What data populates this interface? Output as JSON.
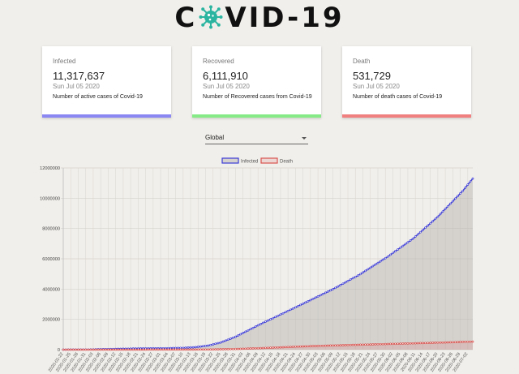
{
  "header": {
    "logo_left": "C",
    "logo_right": "VID-19"
  },
  "cards": [
    {
      "label": "Infected",
      "count": "11,317,637",
      "date": "Sun Jul 05 2020",
      "desc": "Number of active cases of Covid-19",
      "color": "#8a86f2"
    },
    {
      "label": "Recovered",
      "count": "6,111,910",
      "date": "Sun Jul 05 2020",
      "desc": "Number of Recovered cases from Covid-19",
      "color": "#86ea86"
    },
    {
      "label": "Death",
      "count": "531,729",
      "date": "Sun Jul 05 2020",
      "desc": "Number of death cases of Covid-19",
      "color": "#f08080"
    }
  ],
  "country_select": {
    "value": "Global"
  },
  "chart_data": {
    "type": "line",
    "legend": [
      "Infected",
      "Death"
    ],
    "legend_position": "top",
    "ylim": [
      0,
      12000000
    ],
    "y_ticks": [
      0,
      2000000,
      4000000,
      6000000,
      8000000,
      10000000,
      12000000
    ],
    "x_tick_labels": [
      "2020-01-22",
      "2020-01-25",
      "2020-01-28",
      "2020-01-31",
      "2020-02-03",
      "2020-02-06",
      "2020-02-09",
      "2020-02-12",
      "2020-02-15",
      "2020-02-18",
      "2020-02-21",
      "2020-02-24",
      "2020-02-27",
      "2020-03-01",
      "2020-03-04",
      "2020-03-07",
      "2020-03-10",
      "2020-03-13",
      "2020-03-16",
      "2020-03-19",
      "2020-03-22",
      "2020-03-25",
      "2020-03-28",
      "2020-03-31",
      "2020-04-03",
      "2020-04-06",
      "2020-04-09",
      "2020-04-12",
      "2020-04-15",
      "2020-04-18",
      "2020-04-21",
      "2020-04-24",
      "2020-04-27",
      "2020-04-30",
      "2020-05-03",
      "2020-05-06",
      "2020-05-09",
      "2020-05-12",
      "2020-05-15",
      "2020-05-18",
      "2020-05-21",
      "2020-05-24",
      "2020-05-27",
      "2020-05-30",
      "2020-06-02",
      "2020-06-05",
      "2020-06-08",
      "2020-06-11",
      "2020-06-14",
      "2020-06-17",
      "2020-06-20",
      "2020-06-23",
      "2020-06-26",
      "2020-06-29",
      "2020-07-02"
    ],
    "grid": true,
    "series": [
      {
        "name": "Infected",
        "color": "#3b3bd6",
        "fill": "rgba(180,176,170,0.45)",
        "x": [
          "2020-01-22",
          "2020-02-01",
          "2020-02-10",
          "2020-02-20",
          "2020-03-01",
          "2020-03-10",
          "2020-03-15",
          "2020-03-20",
          "2020-03-25",
          "2020-03-31",
          "2020-04-05",
          "2020-04-10",
          "2020-04-15",
          "2020-04-20",
          "2020-04-30",
          "2020-05-10",
          "2020-05-20",
          "2020-05-31",
          "2020-06-10",
          "2020-06-20",
          "2020-06-30",
          "2020-07-04"
        ],
        "values": [
          550,
          12000,
          42000,
          76000,
          88000,
          119000,
          167000,
          270000,
          470000,
          850000,
          1270000,
          1690000,
          2080000,
          2480000,
          3270000,
          4080000,
          4990000,
          6150000,
          7320000,
          8780000,
          10490000,
          11300000
        ]
      },
      {
        "name": "Death",
        "color": "#d9534f",
        "fill": "rgba(217,83,79,0.15)",
        "x": [
          "2020-01-22",
          "2020-02-20",
          "2020-03-10",
          "2020-03-20",
          "2020-03-31",
          "2020-04-10",
          "2020-04-20",
          "2020-04-30",
          "2020-05-10",
          "2020-05-20",
          "2020-05-31",
          "2020-06-10",
          "2020-06-20",
          "2020-06-30",
          "2020-07-04"
        ],
        "values": [
          17,
          2200,
          4300,
          11000,
          43000,
          102000,
          170000,
          234000,
          282000,
          327000,
          375000,
          418000,
          464000,
          513000,
          531000
        ]
      }
    ]
  }
}
